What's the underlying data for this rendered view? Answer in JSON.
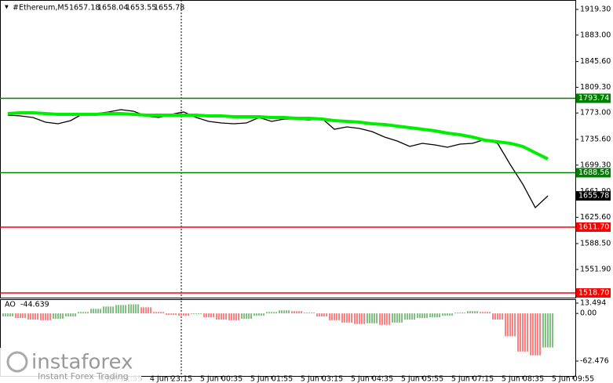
{
  "chart_data": {
    "type": "line",
    "symbol": "#Ethereum,M5",
    "quote": [
      "1657.18",
      "1658.04",
      "1653.55",
      "1655.78"
    ],
    "categories": [
      null,
      null,
      null,
      null,
      null,
      null,
      null,
      null,
      null,
      "4 Jun 21:55",
      null,
      null,
      null,
      "4 Jun 23:15",
      null,
      null,
      null,
      "5 Jun 00:35",
      null,
      null,
      null,
      "5 Jun 01:55",
      null,
      null,
      null,
      "5 Jun 03:15",
      null,
      null,
      null,
      "5 Jun 04:35",
      null,
      null,
      null,
      "5 Jun 05:55",
      null,
      null,
      null,
      "5 Jun 07:15",
      null,
      null,
      null,
      "5 Jun 08:35",
      null,
      null,
      null,
      "5 Jun 09:55"
    ],
    "series": [
      {
        "color": "#000000",
        "values": [
          1769.9,
          1768.8,
          1766.6,
          1760.0,
          1757.8,
          1762.2,
          1772.1,
          1772.1,
          1774.4,
          1777.7,
          1775.5,
          1768.8,
          1766.6,
          1771.0,
          1774.4,
          1766.6,
          1761.1,
          1758.9,
          1757.8,
          1758.9,
          1766.6,
          1761.1,
          1764.4,
          1764.4,
          1763.3,
          1765.5,
          1750.0,
          1753.3,
          1751.1,
          1746.7,
          1739.0,
          1733.4,
          1725.7,
          1730.1,
          1727.9,
          1724.6,
          1729.0,
          1730.1,
          1735.6,
          1730.1,
          1700.2,
          1672.5,
          1639.3,
          1655.78,
          null,
          null
        ]
      },
      {
        "color": "#00ee00",
        "values": [
          1772.1,
          1773.2,
          1773.2,
          1772.1,
          1771.0,
          1771.0,
          1771.0,
          1771.0,
          1772.1,
          1772.1,
          1771.0,
          1769.9,
          1769.9,
          1769.9,
          1769.9,
          1769.9,
          1768.8,
          1768.8,
          1767.7,
          1767.7,
          1767.7,
          1766.6,
          1766.6,
          1765.5,
          1765.5,
          1764.4,
          1762.2,
          1761.1,
          1760.0,
          1757.8,
          1756.7,
          1754.4,
          1752.2,
          1750.0,
          1747.8,
          1744.5,
          1742.3,
          1739.0,
          1734.5,
          1732.3,
          1730.1,
          1725.7,
          1716.8,
          1708.0,
          null,
          null
        ]
      }
    ],
    "ylim": [
      1512.1,
      1932.6
    ],
    "yticks": [
      {
        "value": 1919.3,
        "label": "1919.30"
      },
      {
        "value": 1883.0,
        "label": "1883.00"
      },
      {
        "value": 1845.6,
        "label": "1845.60"
      },
      {
        "value": 1809.3,
        "label": "1809.30"
      },
      {
        "value": 1773.0,
        "label": "1773.00"
      },
      {
        "value": 1735.6,
        "label": "1735.60"
      },
      {
        "value": 1699.3,
        "label": "1699.30"
      },
      {
        "value": 1661.9,
        "label": "1661.90"
      },
      {
        "value": 1625.6,
        "label": "1625.60"
      },
      {
        "value": 1588.5,
        "label": "1588.50"
      },
      {
        "value": 1551.9,
        "label": "1551.90"
      }
    ],
    "levels": [
      {
        "value": 1793.74,
        "color": "#008000"
      },
      {
        "value": 1688.56,
        "color": "#008000"
      },
      {
        "value": 1611.7,
        "label": "1611.70",
        "color": "#ff0000"
      },
      {
        "value": 1518.7,
        "label": "1518.70",
        "color": "#ff0000"
      }
    ],
    "last_price": 1655.78,
    "indicator": {
      "name": "AO",
      "current": -44.639,
      "up_color": "#008000",
      "down_color": "#ff0000",
      "values": [
        -4,
        -6,
        -8,
        -9,
        -7,
        -4,
        2,
        6,
        9,
        11,
        12,
        8,
        2,
        -2,
        -3,
        -1,
        -5,
        -8,
        -9,
        -7,
        -3,
        2,
        4,
        3,
        1,
        -4,
        -9,
        -12,
        -14,
        -13,
        -15,
        -12,
        -8,
        -6,
        -5,
        -3,
        1,
        3,
        2,
        -8,
        -30,
        -50,
        -55,
        -44.639,
        null,
        null
      ],
      "ylim": [
        -81.98,
        18.63
      ],
      "yticks": [
        13.494,
        {
          "value": 0,
          "label": "0.00"
        },
        -62.476
      ]
    }
  },
  "watermark": {
    "brand": "instaforex",
    "tagline": "Instant Forex Trading"
  }
}
